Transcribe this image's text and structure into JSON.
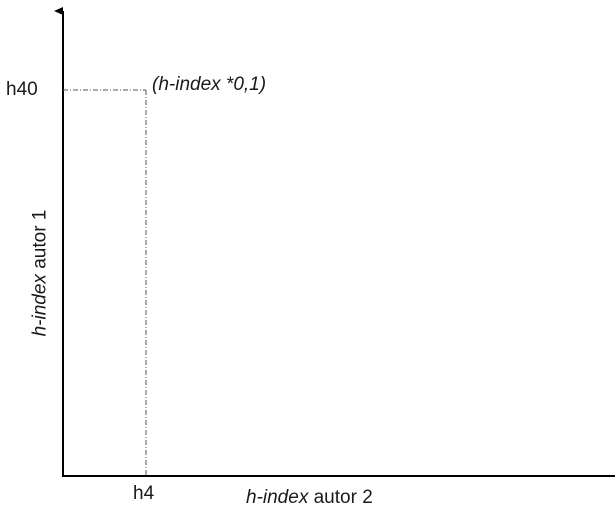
{
  "labels": {
    "y_tick": "h40",
    "x_tick": "h4",
    "point": "(h-index *0,1)",
    "x_axis_italic": "h-index",
    "x_axis_rest": " autor 2",
    "y_axis_italic": "h-index",
    "y_axis_rest": " autor 1"
  },
  "colors": {
    "axis": "#000000",
    "guide": "#555555",
    "text": "#1a1a1a"
  }
}
